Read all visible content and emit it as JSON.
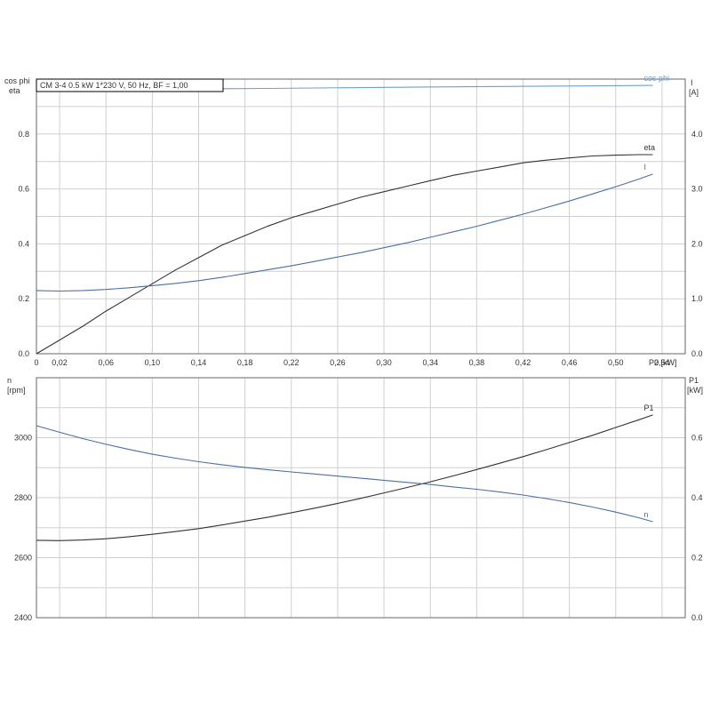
{
  "chart_data": [
    {
      "type": "line",
      "title": "CM 3-4   0.5 kW   1*230 V, 50 Hz, BF = 1,00",
      "xlabel": "P2 [kW]",
      "ylabel_left": [
        "cos phi",
        "eta"
      ],
      "ylabel_right": [
        "I",
        "[A]"
      ],
      "xlim": [
        0,
        0.56
      ],
      "ylim_left": [
        0,
        1.0
      ],
      "ylim_right": [
        0,
        5.0
      ],
      "grid": true,
      "x_ticks": [
        "0",
        "0,02",
        "0,06",
        "0,10",
        "0,14",
        "0,18",
        "0,22",
        "0,26",
        "0,30",
        "0,34",
        "0,38",
        "0,42",
        "0,46",
        "0,50",
        "0,54"
      ],
      "y_ticks_left": [
        "0.0",
        "0.2",
        "0.4",
        "0.6",
        "0.8"
      ],
      "y_ticks_right": [
        "0.0",
        "1.0",
        "2.0",
        "3.0",
        "4.0"
      ],
      "series": [
        {
          "name": "cos phi",
          "axis": "left",
          "color": "#6fa0c8",
          "x": [
            0,
            0.1,
            0.2,
            0.3,
            0.4,
            0.5,
            0.532
          ],
          "y": [
            0.96,
            0.963,
            0.966,
            0.97,
            0.973,
            0.976,
            0.977
          ]
        },
        {
          "name": "eta",
          "axis": "left",
          "color": "#333333",
          "x": [
            0,
            0.02,
            0.04,
            0.06,
            0.08,
            0.1,
            0.12,
            0.14,
            0.16,
            0.18,
            0.2,
            0.22,
            0.24,
            0.26,
            0.28,
            0.3,
            0.32,
            0.34,
            0.36,
            0.38,
            0.4,
            0.42,
            0.44,
            0.46,
            0.48,
            0.5,
            0.52,
            0.532
          ],
          "y": [
            0.0,
            0.05,
            0.1,
            0.155,
            0.205,
            0.255,
            0.305,
            0.35,
            0.395,
            0.43,
            0.465,
            0.495,
            0.52,
            0.545,
            0.57,
            0.59,
            0.61,
            0.63,
            0.65,
            0.665,
            0.68,
            0.695,
            0.705,
            0.713,
            0.72,
            0.723,
            0.725,
            0.725
          ]
        },
        {
          "name": "I",
          "axis": "right",
          "color": "#4a6fa5",
          "x": [
            0,
            0.02,
            0.04,
            0.06,
            0.08,
            0.1,
            0.12,
            0.14,
            0.16,
            0.18,
            0.2,
            0.22,
            0.24,
            0.26,
            0.28,
            0.3,
            0.32,
            0.34,
            0.36,
            0.38,
            0.4,
            0.42,
            0.44,
            0.46,
            0.48,
            0.5,
            0.52,
            0.532
          ],
          "y": [
            1.15,
            1.14,
            1.15,
            1.17,
            1.2,
            1.24,
            1.28,
            1.33,
            1.39,
            1.46,
            1.53,
            1.6,
            1.68,
            1.76,
            1.84,
            1.93,
            2.02,
            2.12,
            2.22,
            2.32,
            2.43,
            2.54,
            2.66,
            2.78,
            2.91,
            3.04,
            3.18,
            3.27
          ]
        }
      ]
    },
    {
      "type": "line",
      "xlim": [
        0,
        0.56
      ],
      "ylabel_left": [
        "n",
        "[rpm]"
      ],
      "ylabel_right": [
        "P1",
        "[kW]"
      ],
      "ylim_left": [
        2400,
        3200
      ],
      "ylim_right": [
        0,
        0.8
      ],
      "grid": true,
      "y_ticks_left": [
        "2400",
        "2600",
        "2800",
        "3000"
      ],
      "y_ticks_right": [
        "0.0",
        "0.2",
        "0.4",
        "0.6"
      ],
      "series": [
        {
          "name": "P1",
          "axis": "right",
          "color": "#333333",
          "x": [
            0,
            0.02,
            0.04,
            0.06,
            0.08,
            0.1,
            0.12,
            0.14,
            0.16,
            0.18,
            0.2,
            0.22,
            0.24,
            0.26,
            0.28,
            0.3,
            0.32,
            0.34,
            0.36,
            0.38,
            0.4,
            0.42,
            0.44,
            0.46,
            0.48,
            0.5,
            0.52,
            0.532
          ],
          "y": [
            0.258,
            0.257,
            0.259,
            0.263,
            0.27,
            0.278,
            0.287,
            0.297,
            0.309,
            0.322,
            0.335,
            0.35,
            0.365,
            0.381,
            0.398,
            0.416,
            0.434,
            0.453,
            0.473,
            0.494,
            0.515,
            0.537,
            0.56,
            0.584,
            0.608,
            0.634,
            0.66,
            0.676
          ]
        },
        {
          "name": "n",
          "axis": "left",
          "color": "#4a6fa5",
          "x": [
            0,
            0.02,
            0.04,
            0.06,
            0.08,
            0.1,
            0.12,
            0.14,
            0.16,
            0.18,
            0.2,
            0.22,
            0.24,
            0.26,
            0.28,
            0.3,
            0.32,
            0.34,
            0.36,
            0.38,
            0.4,
            0.42,
            0.44,
            0.46,
            0.48,
            0.5,
            0.52,
            0.532
          ],
          "y": [
            3040,
            3018,
            2997,
            2978,
            2961,
            2945,
            2932,
            2920,
            2910,
            2901,
            2893,
            2886,
            2879,
            2872,
            2865,
            2858,
            2851,
            2844,
            2836,
            2828,
            2819,
            2809,
            2797,
            2784,
            2769,
            2752,
            2733,
            2720
          ]
        }
      ]
    }
  ]
}
